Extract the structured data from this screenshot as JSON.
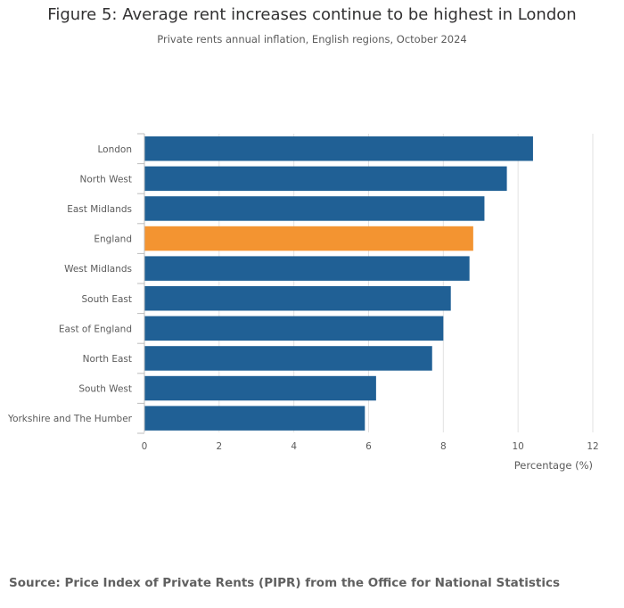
{
  "chart_data": {
    "type": "bar",
    "orientation": "horizontal",
    "title": "Figure 5: Average rent increases continue to be highest in London",
    "subtitle": "Private rents annual inflation, English regions, October 2024",
    "categories": [
      "London",
      "North West",
      "East Midlands",
      "England",
      "West Midlands",
      "South East",
      "East of England",
      "North East",
      "South West",
      "Yorkshire and The Humber"
    ],
    "values": [
      10.4,
      9.7,
      9.1,
      8.8,
      8.7,
      8.2,
      8.0,
      7.7,
      6.2,
      5.9
    ],
    "highlight": "England",
    "xlabel": "Percentage (%)",
    "ylabel": "",
    "xlim": [
      0,
      12
    ],
    "xticks": [
      0,
      2,
      4,
      6,
      8,
      10,
      12
    ],
    "grid": true,
    "colors": {
      "bar": "#206095",
      "highlight": "#f39431",
      "grid": "#e2e2e2",
      "axis": "#bdbdbd",
      "text": "#5b5b5b"
    }
  },
  "source": "Source: Price Index of Private Rents (PIPR) from the Office for National Statistics"
}
